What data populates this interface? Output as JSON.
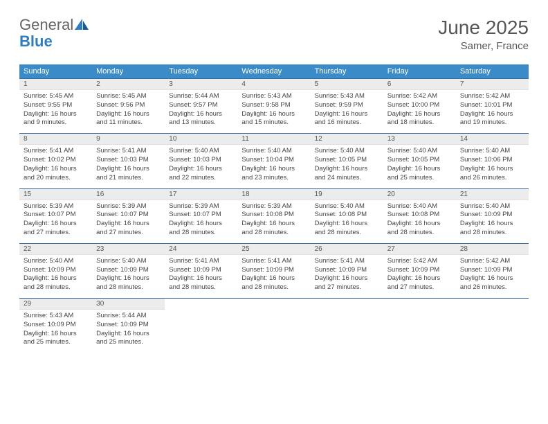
{
  "logo": {
    "general": "General",
    "blue": "Blue"
  },
  "title": "June 2025",
  "location": "Samer, France",
  "colors": {
    "header_bg": "#3b8bc9",
    "header_text": "#ffffff",
    "row_divider": "#3b6a94",
    "daynum_bg": "#ececec",
    "text": "#444444",
    "logo_blue": "#2d7dc6"
  },
  "days_of_week": [
    "Sunday",
    "Monday",
    "Tuesday",
    "Wednesday",
    "Thursday",
    "Friday",
    "Saturday"
  ],
  "weeks": [
    [
      {
        "n": "1",
        "sr": "Sunrise: 5:45 AM",
        "ss": "Sunset: 9:55 PM",
        "dl": "Daylight: 16 hours and 9 minutes."
      },
      {
        "n": "2",
        "sr": "Sunrise: 5:45 AM",
        "ss": "Sunset: 9:56 PM",
        "dl": "Daylight: 16 hours and 11 minutes."
      },
      {
        "n": "3",
        "sr": "Sunrise: 5:44 AM",
        "ss": "Sunset: 9:57 PM",
        "dl": "Daylight: 16 hours and 13 minutes."
      },
      {
        "n": "4",
        "sr": "Sunrise: 5:43 AM",
        "ss": "Sunset: 9:58 PM",
        "dl": "Daylight: 16 hours and 15 minutes."
      },
      {
        "n": "5",
        "sr": "Sunrise: 5:43 AM",
        "ss": "Sunset: 9:59 PM",
        "dl": "Daylight: 16 hours and 16 minutes."
      },
      {
        "n": "6",
        "sr": "Sunrise: 5:42 AM",
        "ss": "Sunset: 10:00 PM",
        "dl": "Daylight: 16 hours and 18 minutes."
      },
      {
        "n": "7",
        "sr": "Sunrise: 5:42 AM",
        "ss": "Sunset: 10:01 PM",
        "dl": "Daylight: 16 hours and 19 minutes."
      }
    ],
    [
      {
        "n": "8",
        "sr": "Sunrise: 5:41 AM",
        "ss": "Sunset: 10:02 PM",
        "dl": "Daylight: 16 hours and 20 minutes."
      },
      {
        "n": "9",
        "sr": "Sunrise: 5:41 AM",
        "ss": "Sunset: 10:03 PM",
        "dl": "Daylight: 16 hours and 21 minutes."
      },
      {
        "n": "10",
        "sr": "Sunrise: 5:40 AM",
        "ss": "Sunset: 10:03 PM",
        "dl": "Daylight: 16 hours and 22 minutes."
      },
      {
        "n": "11",
        "sr": "Sunrise: 5:40 AM",
        "ss": "Sunset: 10:04 PM",
        "dl": "Daylight: 16 hours and 23 minutes."
      },
      {
        "n": "12",
        "sr": "Sunrise: 5:40 AM",
        "ss": "Sunset: 10:05 PM",
        "dl": "Daylight: 16 hours and 24 minutes."
      },
      {
        "n": "13",
        "sr": "Sunrise: 5:40 AM",
        "ss": "Sunset: 10:05 PM",
        "dl": "Daylight: 16 hours and 25 minutes."
      },
      {
        "n": "14",
        "sr": "Sunrise: 5:40 AM",
        "ss": "Sunset: 10:06 PM",
        "dl": "Daylight: 16 hours and 26 minutes."
      }
    ],
    [
      {
        "n": "15",
        "sr": "Sunrise: 5:39 AM",
        "ss": "Sunset: 10:07 PM",
        "dl": "Daylight: 16 hours and 27 minutes."
      },
      {
        "n": "16",
        "sr": "Sunrise: 5:39 AM",
        "ss": "Sunset: 10:07 PM",
        "dl": "Daylight: 16 hours and 27 minutes."
      },
      {
        "n": "17",
        "sr": "Sunrise: 5:39 AM",
        "ss": "Sunset: 10:07 PM",
        "dl": "Daylight: 16 hours and 28 minutes."
      },
      {
        "n": "18",
        "sr": "Sunrise: 5:39 AM",
        "ss": "Sunset: 10:08 PM",
        "dl": "Daylight: 16 hours and 28 minutes."
      },
      {
        "n": "19",
        "sr": "Sunrise: 5:40 AM",
        "ss": "Sunset: 10:08 PM",
        "dl": "Daylight: 16 hours and 28 minutes."
      },
      {
        "n": "20",
        "sr": "Sunrise: 5:40 AM",
        "ss": "Sunset: 10:08 PM",
        "dl": "Daylight: 16 hours and 28 minutes."
      },
      {
        "n": "21",
        "sr": "Sunrise: 5:40 AM",
        "ss": "Sunset: 10:09 PM",
        "dl": "Daylight: 16 hours and 28 minutes."
      }
    ],
    [
      {
        "n": "22",
        "sr": "Sunrise: 5:40 AM",
        "ss": "Sunset: 10:09 PM",
        "dl": "Daylight: 16 hours and 28 minutes."
      },
      {
        "n": "23",
        "sr": "Sunrise: 5:40 AM",
        "ss": "Sunset: 10:09 PM",
        "dl": "Daylight: 16 hours and 28 minutes."
      },
      {
        "n": "24",
        "sr": "Sunrise: 5:41 AM",
        "ss": "Sunset: 10:09 PM",
        "dl": "Daylight: 16 hours and 28 minutes."
      },
      {
        "n": "25",
        "sr": "Sunrise: 5:41 AM",
        "ss": "Sunset: 10:09 PM",
        "dl": "Daylight: 16 hours and 28 minutes."
      },
      {
        "n": "26",
        "sr": "Sunrise: 5:41 AM",
        "ss": "Sunset: 10:09 PM",
        "dl": "Daylight: 16 hours and 27 minutes."
      },
      {
        "n": "27",
        "sr": "Sunrise: 5:42 AM",
        "ss": "Sunset: 10:09 PM",
        "dl": "Daylight: 16 hours and 27 minutes."
      },
      {
        "n": "28",
        "sr": "Sunrise: 5:42 AM",
        "ss": "Sunset: 10:09 PM",
        "dl": "Daylight: 16 hours and 26 minutes."
      }
    ],
    [
      {
        "n": "29",
        "sr": "Sunrise: 5:43 AM",
        "ss": "Sunset: 10:09 PM",
        "dl": "Daylight: 16 hours and 25 minutes."
      },
      {
        "n": "30",
        "sr": "Sunrise: 5:44 AM",
        "ss": "Sunset: 10:09 PM",
        "dl": "Daylight: 16 hours and 25 minutes."
      },
      null,
      null,
      null,
      null,
      null
    ]
  ]
}
